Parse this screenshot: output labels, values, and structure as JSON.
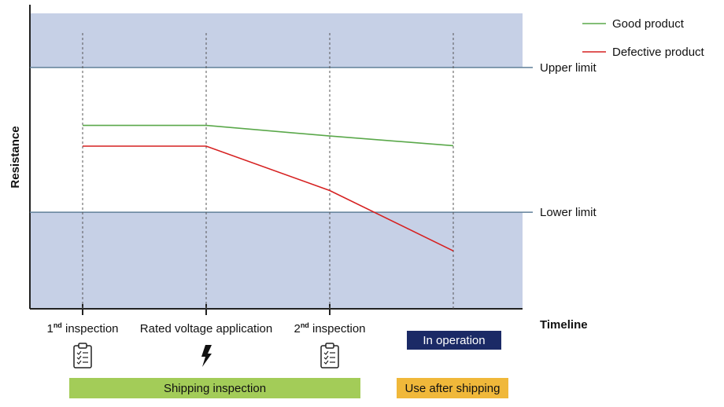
{
  "chart_data": {
    "type": "line",
    "ylabel": "Resistance",
    "xlabel": "Timeline",
    "x_stages": [
      {
        "sup": "1",
        "sup_suffix": "nd",
        "label": " inspection",
        "icon": "clipboard-checklist-icon"
      },
      {
        "label": "Rated voltage application",
        "icon": "lightning-bolt-icon"
      },
      {
        "sup": "2",
        "sup_suffix": "nd",
        "label": " inspection",
        "icon": "clipboard-checklist-icon"
      },
      {
        "label": "",
        "icon": ""
      }
    ],
    "limits": {
      "upper": {
        "label": "Upper limit",
        "value": 5
      },
      "lower": {
        "label": "Lower limit",
        "value": 2
      }
    },
    "ylim": [
      0,
      6.3
    ],
    "series": [
      {
        "name": "Good product",
        "color": "#5aa84a",
        "values": [
          3.8,
          3.8,
          3.58,
          3.38
        ]
      },
      {
        "name": "Defective product",
        "color": "#d62020",
        "values": [
          3.37,
          3.37,
          2.45,
          1.2
        ]
      }
    ],
    "legend_position": "top-right",
    "shade_color": "#c6d0e6",
    "limit_line_color": "#5f7f99"
  },
  "phases": {
    "in_operation": {
      "label": "In operation",
      "color": "#1b2a66"
    },
    "shipping_inspection": {
      "label": "Shipping inspection",
      "color": "#a3cc58"
    },
    "use_after_shipping": {
      "label": "Use after shipping",
      "color": "#f0b83a"
    }
  }
}
